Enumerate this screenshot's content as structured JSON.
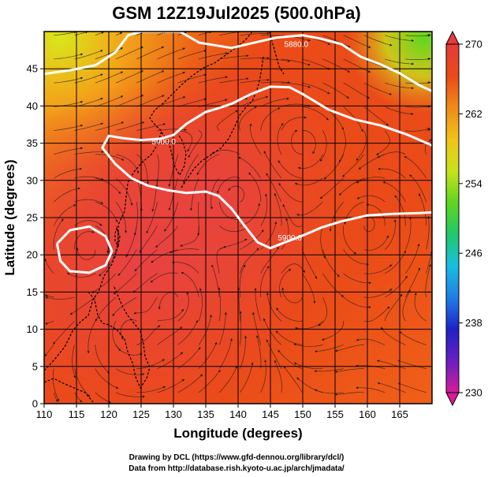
{
  "chart_data": {
    "type": "heatmap",
    "title": "GSM 12Z19Jul2025 (500.0hPa)",
    "xlabel": "Longitude (degrees)",
    "ylabel": "Latitude  (degrees)",
    "xlim": [
      110,
      170
    ],
    "ylim": [
      0,
      50
    ],
    "xticks": [
      "110",
      "115",
      "120",
      "125",
      "130",
      "135",
      "140",
      "145",
      "150",
      "155",
      "160",
      "165"
    ],
    "yticks": [
      "0",
      "5",
      "10",
      "15",
      "20",
      "25",
      "30",
      "35",
      "40",
      "45"
    ],
    "colorbar": {
      "min": 230,
      "max": 270,
      "ticks": [
        "270",
        "262",
        "254",
        "246",
        "238",
        "230"
      ],
      "colors": [
        "#d81b9b",
        "#6a1fbf",
        "#1f22c8",
        "#1f7fe6",
        "#18bfe0",
        "#20c96a",
        "#5fd61f",
        "#c7e21b",
        "#f2c21a",
        "#f08a18",
        "#ea4b18",
        "#e83a3a"
      ]
    },
    "contours": [
      {
        "label": "5880.0",
        "points": [
          [
            110,
            44.3
          ],
          [
            114,
            44.8
          ],
          [
            118,
            45.5
          ],
          [
            121,
            47.2
          ],
          [
            123,
            49.5
          ],
          [
            125,
            50
          ],
          [
            131,
            50
          ],
          [
            134,
            48.5
          ],
          [
            139,
            47.8
          ],
          [
            142,
            48.4
          ],
          [
            146,
            49.2
          ],
          [
            150,
            49.5
          ],
          [
            153,
            49
          ],
          [
            156,
            48.3
          ],
          [
            159,
            46.6
          ],
          [
            162,
            45.6
          ],
          [
            165,
            44.4
          ],
          [
            168,
            42.8
          ],
          [
            170,
            42
          ]
        ]
      },
      {
        "label": "5900.0",
        "points": [
          [
            170,
            34.7
          ],
          [
            166,
            36.2
          ],
          [
            162,
            37.4
          ],
          [
            158,
            38.2
          ],
          [
            154,
            39.5
          ],
          [
            150,
            41.6
          ],
          [
            148,
            42.5
          ],
          [
            145,
            42.6
          ],
          [
            142,
            41.6
          ],
          [
            139,
            40.3
          ],
          [
            137,
            39.7
          ],
          [
            135,
            39.2
          ],
          [
            132,
            37.6
          ],
          [
            130,
            36.1
          ],
          [
            128,
            35.6
          ],
          [
            125,
            35.4
          ],
          [
            122,
            35.7
          ],
          [
            120,
            36
          ],
          [
            119,
            34.4
          ],
          [
            121,
            32.2
          ],
          [
            123.5,
            30.3
          ],
          [
            126,
            29.3
          ],
          [
            129,
            28.7
          ],
          [
            132,
            28.3
          ],
          [
            135,
            28.5
          ],
          [
            137,
            27.9
          ],
          [
            139,
            26.2
          ],
          [
            141,
            23.9
          ],
          [
            143,
            21.7
          ],
          [
            145,
            20.9
          ],
          [
            147,
            21.6
          ],
          [
            150,
            22.6
          ],
          [
            153,
            23.7
          ],
          [
            156,
            24.5
          ],
          [
            160,
            25.3
          ],
          [
            164,
            25.5
          ],
          [
            168,
            25.6
          ],
          [
            170,
            25.7
          ]
        ]
      },
      {
        "label": "",
        "points": [
          [
            112,
            21.5
          ],
          [
            114,
            23.3
          ],
          [
            117,
            23.8
          ],
          [
            119.5,
            22.5
          ],
          [
            120.5,
            20.5
          ],
          [
            119.5,
            18.6
          ],
          [
            117,
            17.6
          ],
          [
            114,
            17.8
          ],
          [
            112.5,
            19.2
          ],
          [
            112,
            21.5
          ]
        ]
      }
    ],
    "contour_labels": [
      {
        "text": "5880.0",
        "lon": 149,
        "lat": 48.3
      },
      {
        "text": "5900.0",
        "lon": 128.5,
        "lat": 35.2
      },
      {
        "text": "5900.0",
        "lon": 148,
        "lat": 22.3
      }
    ],
    "credits": [
      "Drawing by DCL (https://www.gfd-dennou.org/library/dcl/)",
      "Data from http://database.rish.kyoto-u.ac.jp/arch/jmadata/"
    ]
  }
}
